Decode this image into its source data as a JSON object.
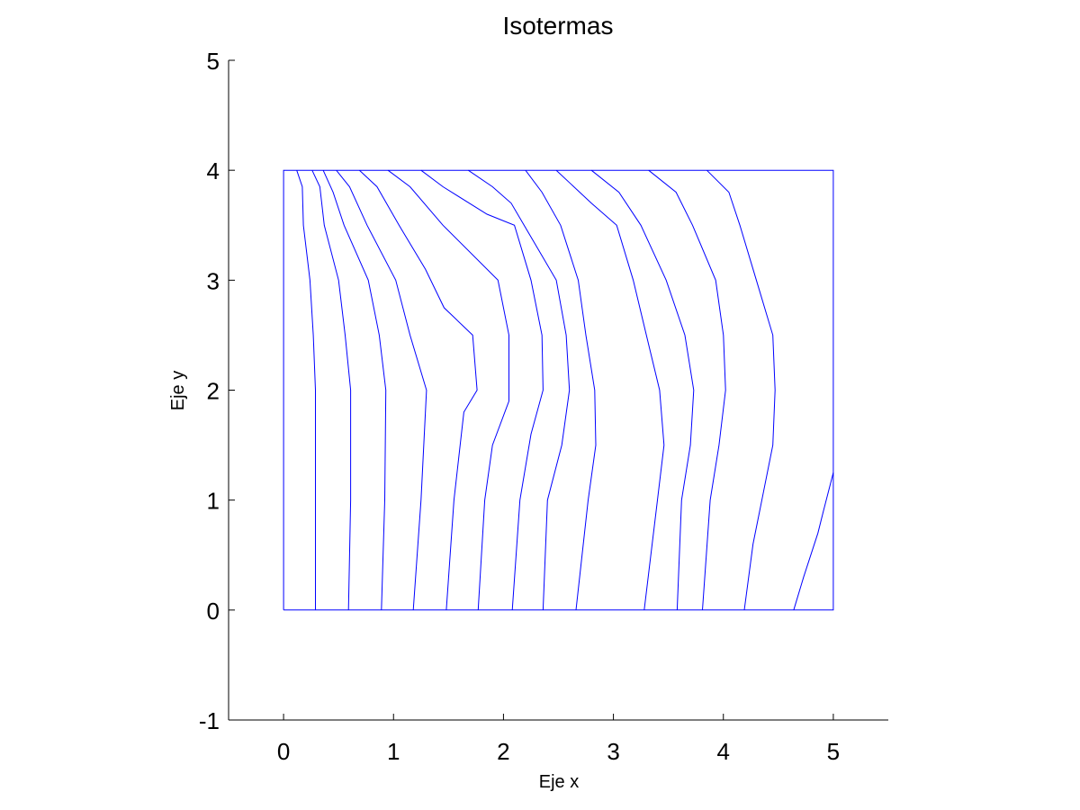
{
  "chart_data": {
    "type": "line",
    "title": "Isotermas",
    "xlabel": "Eje x",
    "ylabel": "Eje y",
    "xlim": [
      -0.5,
      5.5
    ],
    "ylim": [
      -1,
      5
    ],
    "xticks": [
      "0",
      "1",
      "2",
      "3",
      "4",
      "5"
    ],
    "yticks": [
      "-1",
      "0",
      "1",
      "2",
      "3",
      "4",
      "5"
    ],
    "grid": false,
    "line_color": "#0000ff",
    "boundary": [
      [
        0,
        0
      ],
      [
        5,
        0
      ],
      [
        5,
        4
      ],
      [
        0,
        4
      ],
      [
        0,
        0
      ]
    ],
    "series": [
      {
        "points": [
          [
            0.12,
            4
          ],
          [
            0.17,
            3.85
          ],
          [
            0.18,
            3.5
          ],
          [
            0.24,
            3.0
          ],
          [
            0.27,
            2.5
          ],
          [
            0.29,
            2.0
          ],
          [
            0.29,
            1.0
          ],
          [
            0.29,
            0.35
          ],
          [
            0.29,
            0
          ]
        ]
      },
      {
        "points": [
          [
            0.26,
            4
          ],
          [
            0.33,
            3.85
          ],
          [
            0.37,
            3.5
          ],
          [
            0.5,
            3.0
          ],
          [
            0.56,
            2.5
          ],
          [
            0.61,
            2.0
          ],
          [
            0.61,
            1.0
          ],
          [
            0.59,
            0
          ]
        ]
      },
      {
        "points": [
          [
            0.36,
            4
          ],
          [
            0.45,
            3.8
          ],
          [
            0.55,
            3.5
          ],
          [
            0.77,
            3.0
          ],
          [
            0.87,
            2.5
          ],
          [
            0.93,
            2.0
          ],
          [
            0.92,
            1.0
          ],
          [
            0.89,
            0
          ]
        ]
      },
      {
        "points": [
          [
            0.48,
            4
          ],
          [
            0.6,
            3.85
          ],
          [
            0.76,
            3.5
          ],
          [
            1.02,
            3.0
          ],
          [
            1.15,
            2.5
          ],
          [
            1.3,
            2.0
          ],
          [
            1.25,
            1.0
          ],
          [
            1.18,
            0
          ]
        ]
      },
      {
        "points": [
          [
            0.69,
            4
          ],
          [
            0.85,
            3.85
          ],
          [
            1.05,
            3.5
          ],
          [
            1.29,
            3.1
          ],
          [
            1.46,
            2.75
          ],
          [
            1.72,
            2.5
          ],
          [
            1.76,
            2.0
          ],
          [
            1.64,
            1.8
          ],
          [
            1.55,
            1.0
          ],
          [
            1.48,
            0
          ]
        ]
      },
      {
        "points": [
          [
            0.95,
            4
          ],
          [
            1.15,
            3.85
          ],
          [
            1.45,
            3.5
          ],
          [
            1.95,
            3.0
          ],
          [
            2.05,
            2.5
          ],
          [
            2.05,
            1.9
          ],
          [
            1.9,
            1.5
          ],
          [
            1.83,
            1.0
          ],
          [
            1.77,
            0
          ]
        ]
      },
      {
        "points": [
          [
            1.25,
            4
          ],
          [
            1.45,
            3.85
          ],
          [
            1.85,
            3.6
          ],
          [
            2.1,
            3.5
          ],
          [
            2.25,
            3.0
          ],
          [
            2.35,
            2.5
          ],
          [
            2.36,
            2.0
          ],
          [
            2.25,
            1.6
          ],
          [
            2.15,
            1.0
          ],
          [
            2.08,
            0
          ]
        ]
      },
      {
        "points": [
          [
            1.68,
            4
          ],
          [
            1.9,
            3.85
          ],
          [
            2.07,
            3.7
          ],
          [
            2.48,
            3.0
          ],
          [
            2.57,
            2.5
          ],
          [
            2.6,
            2.0
          ],
          [
            2.53,
            1.5
          ],
          [
            2.4,
            1.0
          ],
          [
            2.36,
            0
          ]
        ]
      },
      {
        "points": [
          [
            2.2,
            4
          ],
          [
            2.35,
            3.8
          ],
          [
            2.52,
            3.5
          ],
          [
            2.68,
            3.0
          ],
          [
            2.75,
            2.5
          ],
          [
            2.83,
            2.0
          ],
          [
            2.84,
            1.5
          ],
          [
            2.77,
            1.0
          ],
          [
            2.66,
            0
          ]
        ]
      },
      {
        "points": [
          [
            2.48,
            4
          ],
          [
            2.8,
            3.7
          ],
          [
            3.03,
            3.5
          ],
          [
            3.18,
            3.0
          ],
          [
            3.3,
            2.5
          ],
          [
            3.42,
            2.0
          ],
          [
            3.46,
            1.5
          ],
          [
            3.4,
            1.0
          ],
          [
            3.28,
            0
          ]
        ]
      },
      {
        "points": [
          [
            2.8,
            4
          ],
          [
            3.05,
            3.8
          ],
          [
            3.25,
            3.5
          ],
          [
            3.48,
            3.0
          ],
          [
            3.65,
            2.5
          ],
          [
            3.73,
            2.0
          ],
          [
            3.7,
            1.5
          ],
          [
            3.62,
            1.0
          ],
          [
            3.58,
            0
          ]
        ]
      },
      {
        "points": [
          [
            3.32,
            4
          ],
          [
            3.57,
            3.8
          ],
          [
            3.72,
            3.5
          ],
          [
            3.93,
            3.0
          ],
          [
            4.0,
            2.5
          ],
          [
            4.02,
            2.0
          ],
          [
            3.96,
            1.5
          ],
          [
            3.88,
            1.0
          ],
          [
            3.81,
            0
          ]
        ]
      },
      {
        "points": [
          [
            3.85,
            4
          ],
          [
            4.05,
            3.8
          ],
          [
            4.15,
            3.5
          ],
          [
            4.3,
            3.0
          ],
          [
            4.45,
            2.5
          ],
          [
            4.47,
            2.0
          ],
          [
            4.45,
            1.5
          ],
          [
            4.35,
            1.0
          ],
          [
            4.27,
            0.6
          ],
          [
            4.19,
            0
          ]
        ]
      },
      {
        "points": [
          [
            4.64,
            0
          ],
          [
            4.73,
            0.3
          ],
          [
            4.86,
            0.7
          ],
          [
            4.91,
            0.9
          ],
          [
            5.0,
            1.25
          ]
        ]
      }
    ]
  }
}
